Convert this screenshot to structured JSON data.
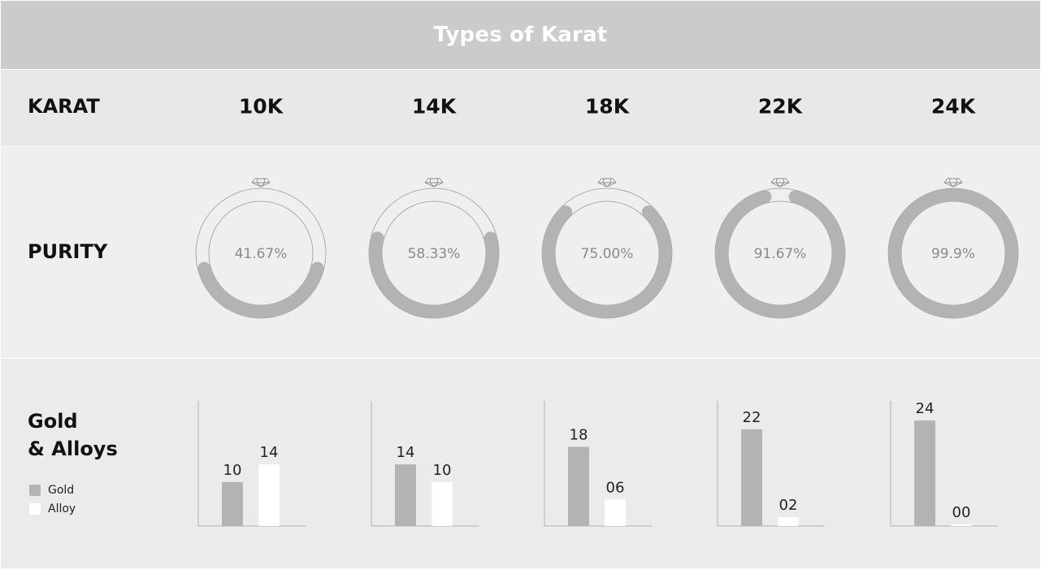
{
  "title": "Types of Karat",
  "labels": {
    "karat": "KARAT",
    "purity": "PURITY",
    "gold_line1": "Gold",
    "gold_line2": "& Alloys"
  },
  "legend": [
    {
      "name": "Gold",
      "color": "#b3b3b3"
    },
    {
      "name": "Alloy",
      "color": "#ffffff"
    }
  ],
  "colors": {
    "header_bg": "#cbcbcb",
    "gold": "#b3b3b3",
    "alloy": "#ffffff",
    "ring_outline": "#9a9a9a"
  },
  "chart_data": [
    {
      "type": "pie",
      "name": "Purity",
      "categories": [
        "10K",
        "14K",
        "18K",
        "22K",
        "24K"
      ],
      "values": [
        41.67,
        58.33,
        75.0,
        91.67,
        99.9
      ],
      "value_labels": [
        "41.67%",
        "58.33%",
        "75.00%",
        "91.67%",
        "99.9%"
      ],
      "unit": "%"
    },
    {
      "type": "bar",
      "name": "Gold & Alloys",
      "categories": [
        "10K",
        "14K",
        "18K",
        "22K",
        "24K"
      ],
      "series": [
        {
          "name": "Gold",
          "values": [
            10,
            14,
            18,
            22,
            24
          ],
          "labels": [
            "10",
            "14",
            "18",
            "22",
            "24"
          ]
        },
        {
          "name": "Alloy",
          "values": [
            14,
            10,
            6,
            2,
            0
          ],
          "labels": [
            "14",
            "10",
            "06",
            "02",
            "00"
          ]
        }
      ],
      "ylim": [
        0,
        24
      ]
    }
  ]
}
